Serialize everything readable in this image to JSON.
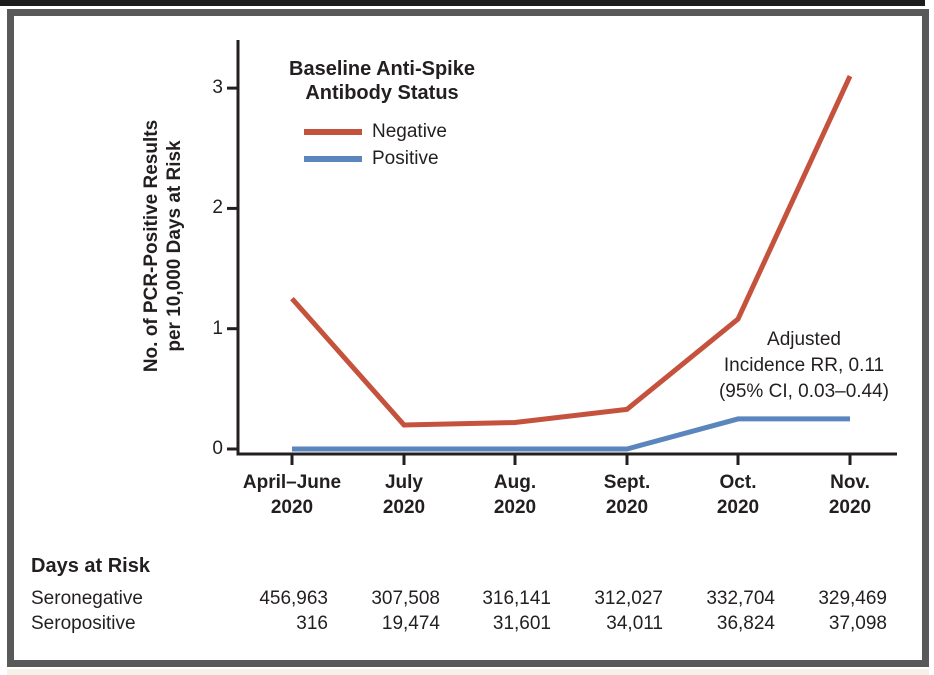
{
  "chart_data": {
    "type": "line",
    "title": "",
    "categories": [
      "April–June 2020",
      "July 2020",
      "Aug. 2020",
      "Sept. 2020",
      "Oct. 2020",
      "Nov. 2020"
    ],
    "x_labels": [
      {
        "month": "April–June",
        "year": "2020"
      },
      {
        "month": "July",
        "year": "2020"
      },
      {
        "month": "Aug.",
        "year": "2020"
      },
      {
        "month": "Sept.",
        "year": "2020"
      },
      {
        "month": "Oct.",
        "year": "2020"
      },
      {
        "month": "Nov.",
        "year": "2020"
      }
    ],
    "series": [
      {
        "name": "Negative",
        "color": "#C4523D",
        "values": [
          1.25,
          0.2,
          0.22,
          0.33,
          1.08,
          3.1
        ]
      },
      {
        "name": "Positive",
        "color": "#5B86BD",
        "values": [
          0,
          0,
          0,
          0,
          0.25,
          0.25
        ]
      }
    ],
    "ylabel_line1": "No. of PCR-Positive Results",
    "ylabel_line2": "per 10,000 Days at Risk",
    "yticks": [
      "0",
      "1",
      "2",
      "3"
    ],
    "ylim": [
      0,
      3.3
    ],
    "grid": false,
    "legend": {
      "title_line1": "Baseline Anti-Spike",
      "title_line2": "Antibody Status",
      "position": "upper-left-inside"
    },
    "annotation": {
      "line1": "Adjusted",
      "line2": "Incidence RR, 0.11",
      "line3": "(95% CI, 0.03–0.44)"
    }
  },
  "risk_table": {
    "title": "Days at Risk",
    "rows": [
      {
        "label": "Seronegative",
        "values": [
          "456,963",
          "307,508",
          "316,141",
          "312,027",
          "332,704",
          "329,469"
        ]
      },
      {
        "label": "Seropositive",
        "values": [
          "316",
          "19,474",
          "31,601",
          "34,011",
          "36,824",
          "37,098"
        ]
      }
    ]
  },
  "colors": {
    "negative_line": "#C4523D",
    "positive_line": "#5B86BD",
    "frame": "#595959",
    "top_bar": "#1C1C1C",
    "text": "#231F20",
    "bottom_strip": "#F7F2E9"
  }
}
